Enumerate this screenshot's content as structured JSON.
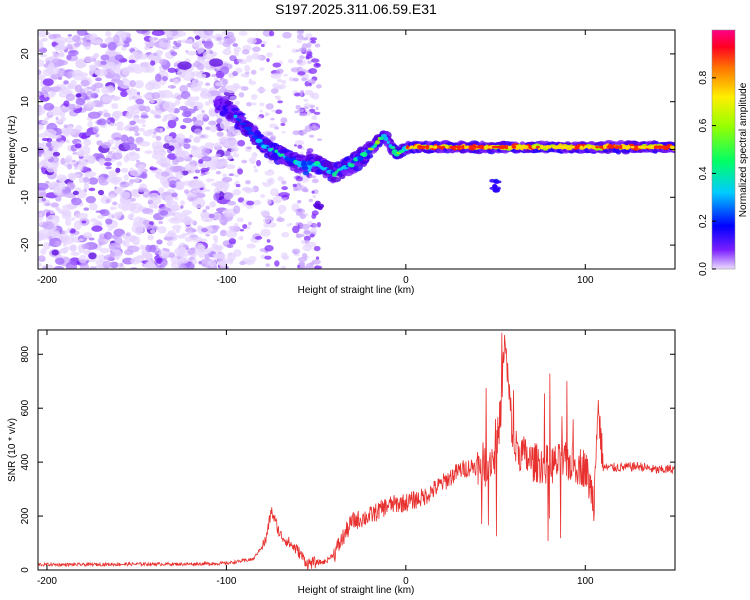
{
  "title": "S197.2025.311.06.59.E31",
  "colors": {
    "snr_line": "#e8312f",
    "cb_stops": [
      "#d9b3ff",
      "#5a00e0",
      "#0000ff",
      "#00ffff",
      "#00ff00",
      "#ffff00",
      "#ff8800",
      "#ff0000",
      "#ff0080"
    ]
  },
  "chart_data": [
    {
      "type": "heatmap",
      "name": "spectrogram",
      "title": "S197.2025.311.06.59.E31",
      "xlabel": "Height of straight line (km)",
      "ylabel": "Frequency (Hz)",
      "xlim": [
        -205,
        150
      ],
      "ylim": [
        -25,
        25
      ],
      "xticks": [
        "-200",
        "-100",
        "0",
        "100"
      ],
      "xtick_values": [
        -200,
        -100,
        0,
        100
      ],
      "yticks": [
        "-20",
        "-10",
        "0",
        "10",
        "20"
      ],
      "ytick_values": [
        -20,
        -10,
        0,
        10,
        20
      ],
      "colorbar": {
        "label": "Normalized spectral amplitude",
        "ticks": [
          "0.0",
          "0.2",
          "0.4",
          "0.6",
          "0.8"
        ],
        "tick_values": [
          0.0,
          0.2,
          0.4,
          0.6,
          0.8
        ],
        "range": [
          0,
          1
        ]
      },
      "ridge": {
        "description_points_x": [
          -100,
          -90,
          -80,
          -70,
          -60,
          -50,
          -40,
          -30,
          -20,
          -12,
          -5,
          0,
          50,
          100,
          150
        ],
        "description_points_y": [
          9,
          5,
          1,
          -1,
          -3,
          -3,
          -5,
          -3,
          0,
          3,
          -1,
          0.5,
          0.5,
          0.5,
          0.5
        ]
      }
    },
    {
      "type": "line",
      "name": "snr",
      "xlabel": "Height of straight line (km)",
      "ylabel": "SNR (10 * v/v)",
      "xlim": [
        -205,
        150
      ],
      "ylim": [
        0,
        890
      ],
      "xticks": [
        "-200",
        "-100",
        "0",
        "100"
      ],
      "xtick_values": [
        -200,
        -100,
        0,
        100
      ],
      "yticks": [
        "0",
        "200",
        "400",
        "600",
        "800"
      ],
      "ytick_values": [
        0,
        200,
        400,
        600,
        800
      ],
      "series": [
        {
          "name": "SNR",
          "x": [
            -205,
            -180,
            -150,
            -120,
            -100,
            -85,
            -78,
            -75,
            -70,
            -60,
            -55,
            -45,
            -40,
            -30,
            -20,
            -10,
            0,
            10,
            20,
            30,
            40,
            50,
            53,
            55,
            60,
            70,
            80,
            90,
            100,
            105,
            107,
            110,
            120,
            130,
            140,
            150
          ],
          "y": [
            20,
            20,
            22,
            22,
            25,
            40,
            110,
            220,
            130,
            70,
            25,
            30,
            60,
            180,
            200,
            240,
            250,
            270,
            320,
            370,
            390,
            420,
            600,
            850,
            460,
            400,
            390,
            400,
            380,
            250,
            620,
            380,
            380,
            385,
            370,
            375
          ]
        }
      ]
    }
  ]
}
